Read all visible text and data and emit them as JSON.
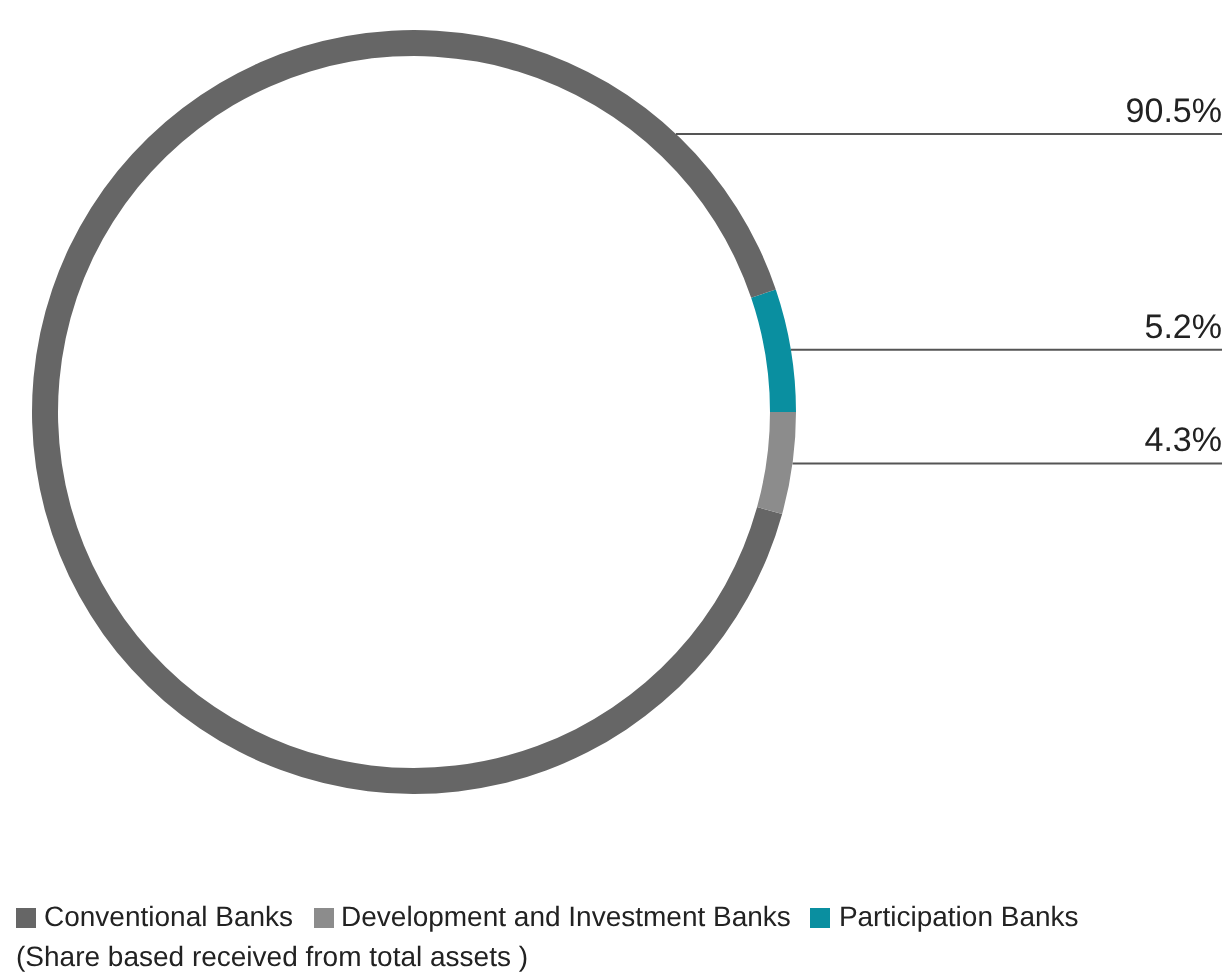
{
  "chart_data": {
    "type": "donut",
    "categories": [
      "Participation Banks",
      "Conventional Banks",
      "Development and Investment Banks"
    ],
    "values": [
      5.2,
      90.5,
      4.3
    ],
    "colors": [
      "#0a8fa0",
      "#666666",
      "#8c8c8c"
    ],
    "value_labels": [
      "5.2%",
      "90.5%",
      "4.3%"
    ],
    "legend": "bottom",
    "annotations": [
      "(Share based received from total assets )"
    ]
  }
}
